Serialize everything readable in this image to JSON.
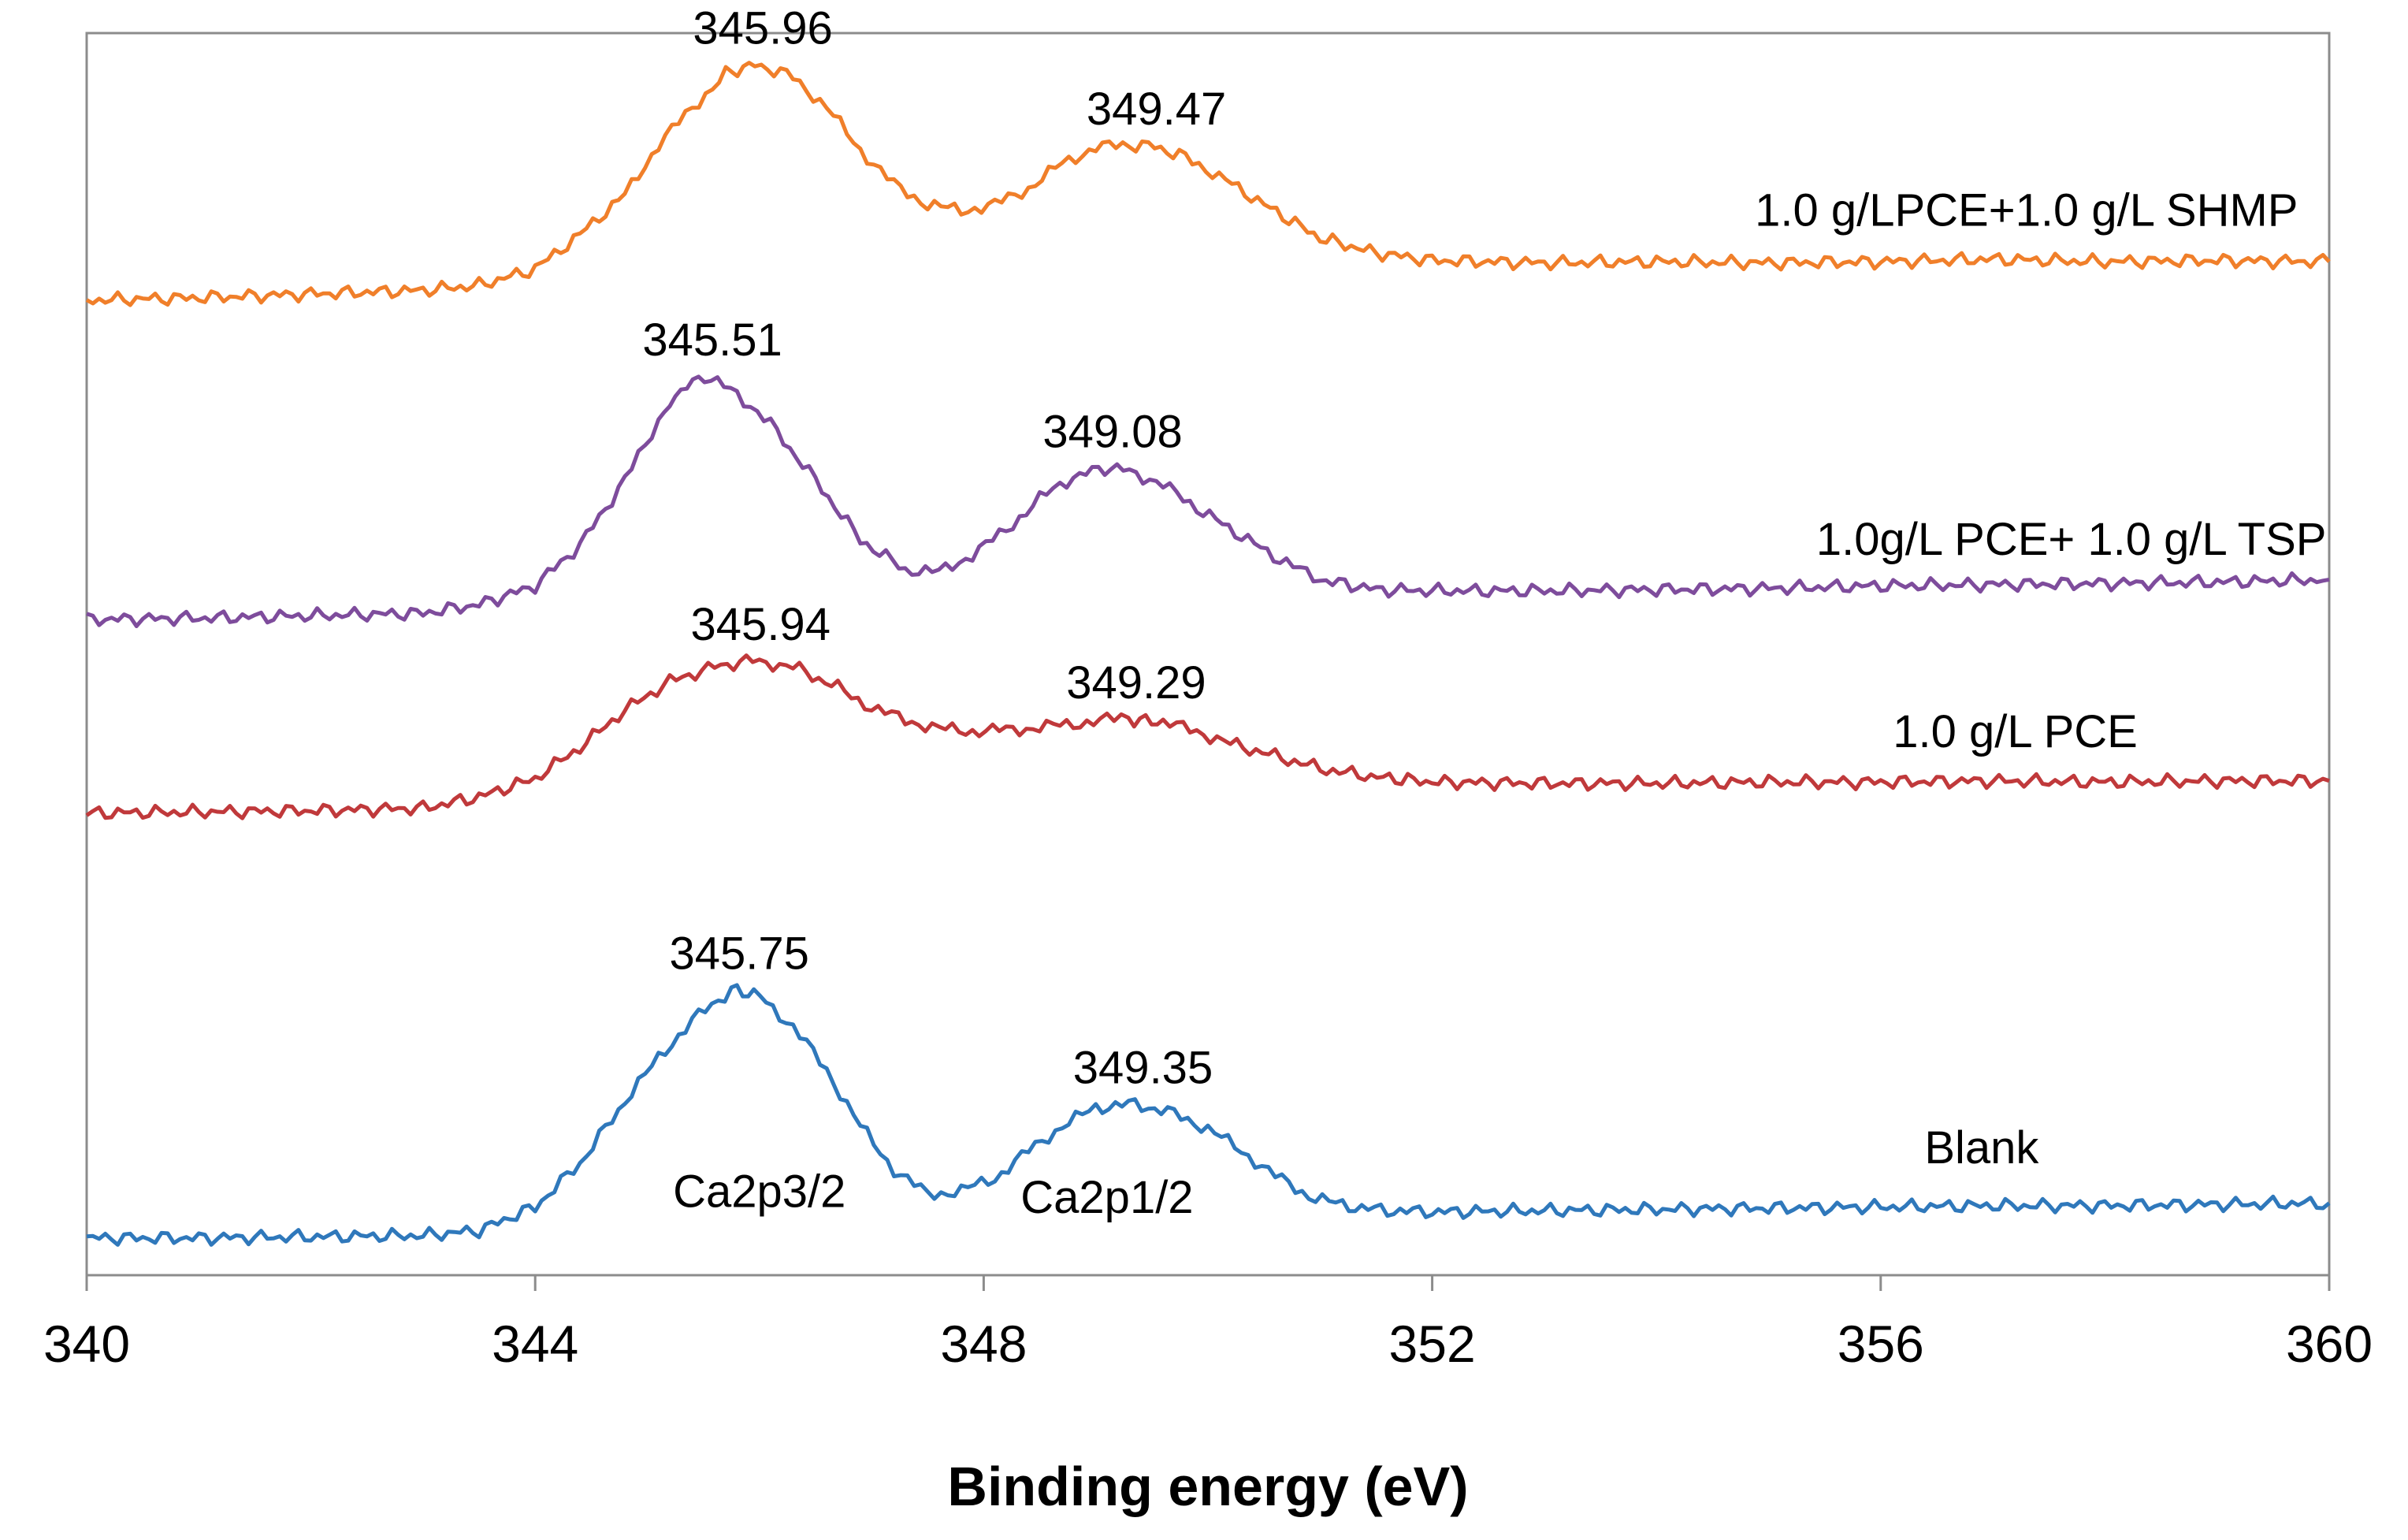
{
  "chart_data": {
    "type": "line",
    "title": "",
    "xlabel": "Binding energy (eV)",
    "ylabel": "",
    "xlim": [
      340,
      360
    ],
    "ylim": [
      0,
      1
    ],
    "grid": false,
    "legend": "none",
    "x_ticks": [
      "340",
      "344",
      "348",
      "352",
      "356",
      "360"
    ],
    "series": [
      {
        "name": "1.0 g/LPCE+1.0 g/L SHMP",
        "color": "#f07f2a",
        "x": [
          340,
          341,
          342,
          343,
          343.5,
          344,
          344.4,
          344.8,
          345.1,
          345.4,
          345.7,
          345.96,
          346.3,
          346.6,
          346.9,
          347.2,
          347.5,
          347.8,
          348.1,
          348.4,
          348.7,
          349.0,
          349.3,
          349.47,
          349.8,
          350.1,
          350.5,
          351.0,
          351.5,
          352.0,
          353,
          354,
          355,
          356,
          357,
          358,
          359,
          360
        ],
        "y": [
          0.785,
          0.787,
          0.79,
          0.793,
          0.797,
          0.81,
          0.838,
          0.87,
          0.91,
          0.94,
          0.967,
          0.975,
          0.965,
          0.94,
          0.906,
          0.878,
          0.862,
          0.857,
          0.862,
          0.875,
          0.895,
          0.908,
          0.91,
          0.91,
          0.9,
          0.885,
          0.862,
          0.835,
          0.823,
          0.817,
          0.815,
          0.816,
          0.815,
          0.816,
          0.818,
          0.816,
          0.817,
          0.816
        ]
      },
      {
        "name": "1.0g/L PCE+ 1.0 g/L TSP",
        "color": "#7e4c9c",
        "x": [
          340,
          341,
          342,
          343,
          343.5,
          344,
          344.4,
          344.8,
          345.1,
          345.3,
          345.51,
          345.8,
          346.1,
          346.5,
          346.9,
          347.3,
          347.6,
          347.9,
          348.2,
          348.5,
          348.8,
          349.08,
          349.3,
          349.6,
          349.9,
          350.3,
          350.7,
          351.0,
          351.5,
          352,
          353,
          354,
          355,
          356,
          357,
          358,
          359,
          360
        ],
        "y": [
          0.528,
          0.529,
          0.531,
          0.533,
          0.54,
          0.555,
          0.588,
          0.64,
          0.688,
          0.713,
          0.724,
          0.71,
          0.685,
          0.64,
          0.592,
          0.568,
          0.566,
          0.58,
          0.6,
          0.625,
          0.643,
          0.65,
          0.648,
          0.636,
          0.618,
          0.595,
          0.573,
          0.56,
          0.552,
          0.551,
          0.551,
          0.552,
          0.553,
          0.555,
          0.556,
          0.557,
          0.558,
          0.56
        ]
      },
      {
        "name": "1.0 g/L PCE",
        "color": "#c0393b",
        "x": [
          340,
          341,
          342,
          343,
          343.5,
          344,
          344.4,
          344.8,
          345.2,
          345.6,
          345.94,
          346.3,
          346.7,
          347.0,
          347.3,
          347.6,
          347.9,
          348.2,
          348.5,
          348.8,
          349.1,
          349.29,
          349.6,
          349.9,
          350.2,
          350.6,
          351.0,
          351.4,
          352,
          353,
          354,
          355,
          356,
          357,
          358,
          359,
          360
        ],
        "y": [
          0.372,
          0.373,
          0.374,
          0.376,
          0.385,
          0.4,
          0.425,
          0.455,
          0.478,
          0.49,
          0.495,
          0.49,
          0.473,
          0.457,
          0.447,
          0.44,
          0.438,
          0.439,
          0.441,
          0.444,
          0.447,
          0.448,
          0.445,
          0.438,
          0.428,
          0.418,
          0.408,
          0.402,
          0.397,
          0.396,
          0.396,
          0.397,
          0.397,
          0.398,
          0.397,
          0.398,
          0.398
        ]
      },
      {
        "name": "Blank",
        "color": "#2f78bb",
        "x": [
          340,
          341,
          342,
          343,
          343.5,
          344,
          344.4,
          344.8,
          345.1,
          345.4,
          345.75,
          346.0,
          346.3,
          346.6,
          346.9,
          347.2,
          347.5,
          347.8,
          348.1,
          348.4,
          348.7,
          349.0,
          349.35,
          349.7,
          350.0,
          350.3,
          350.6,
          350.9,
          351.2,
          351.6,
          352,
          353,
          354,
          355,
          356,
          357,
          358,
          359,
          360
        ],
        "y": [
          0.03,
          0.03,
          0.031,
          0.032,
          0.036,
          0.055,
          0.09,
          0.14,
          0.175,
          0.205,
          0.23,
          0.225,
          0.2,
          0.165,
          0.12,
          0.085,
          0.065,
          0.068,
          0.078,
          0.1,
          0.12,
          0.135,
          0.138,
          0.13,
          0.118,
          0.1,
          0.08,
          0.064,
          0.056,
          0.052,
          0.051,
          0.052,
          0.053,
          0.054,
          0.055,
          0.056,
          0.056,
          0.057,
          0.058
        ]
      }
    ],
    "annotations": [
      {
        "text": "345.96",
        "x": 345.96,
        "y": 0.975
      },
      {
        "text": "349.47",
        "x": 349.47,
        "y": 0.91
      },
      {
        "text": "345.51",
        "x": 345.51,
        "y": 0.724
      },
      {
        "text": "349.08",
        "x": 349.08,
        "y": 0.65
      },
      {
        "text": "345.94",
        "x": 345.94,
        "y": 0.495
      },
      {
        "text": "349.29",
        "x": 349.29,
        "y": 0.448
      },
      {
        "text": "345.75",
        "x": 345.75,
        "y": 0.23
      },
      {
        "text": "349.35",
        "x": 349.35,
        "y": 0.138
      }
    ],
    "peak_labels": [
      {
        "text": "Ca2p3/2",
        "x": 346.0,
        "y": 0.055
      },
      {
        "text": "Ca2p1/2",
        "x": 349.1,
        "y": 0.05
      }
    ],
    "series_labels": [
      {
        "text": "1.0 g/LPCE+1.0 g/L SHMP",
        "x": 357.3,
        "y": 0.845
      },
      {
        "text": "1.0g/L PCE+ 1.0 g/L TSP",
        "x": 357.7,
        "y": 0.58
      },
      {
        "text": "1.0 g/L PCE",
        "x": 357.2,
        "y": 0.425
      },
      {
        "text": "Blank",
        "x": 356.9,
        "y": 0.09
      }
    ]
  }
}
